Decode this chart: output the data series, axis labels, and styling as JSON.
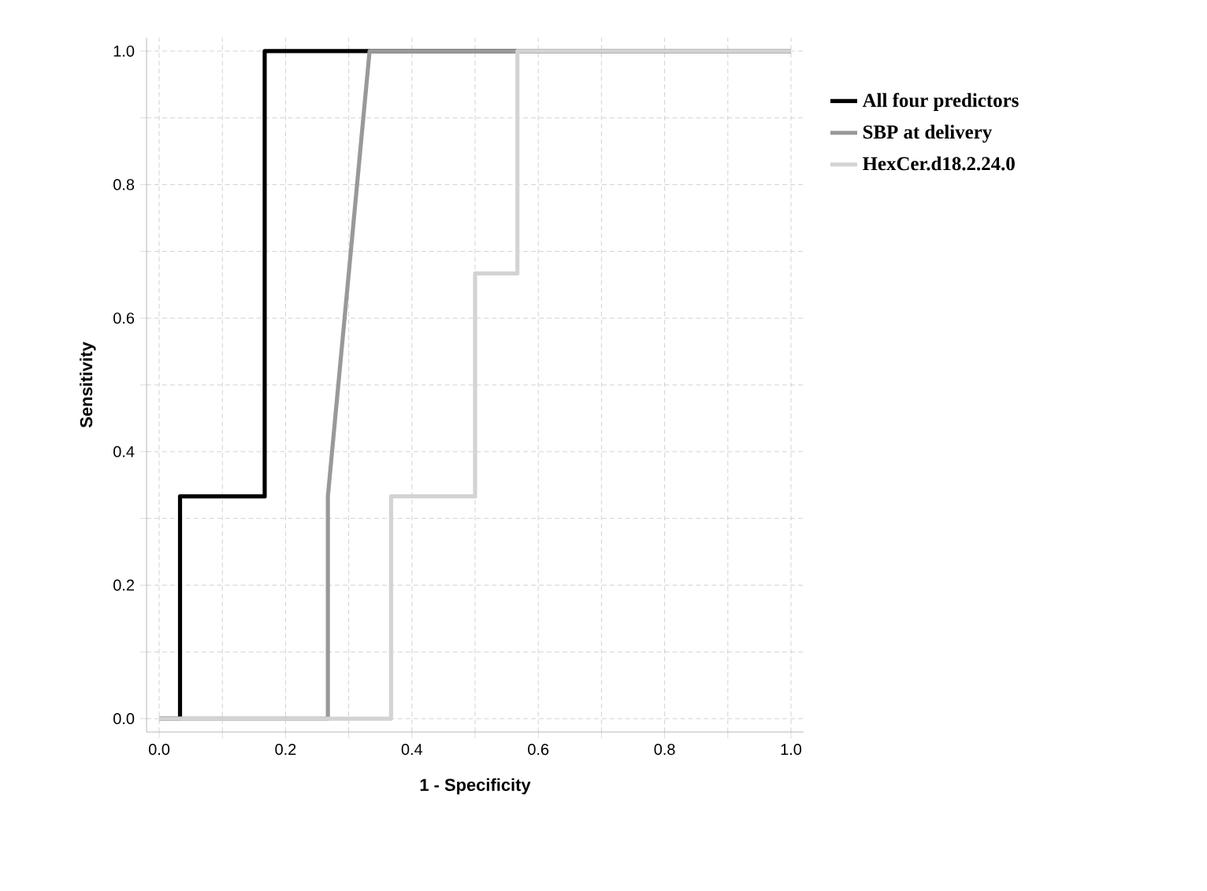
{
  "chart_data": {
    "type": "line",
    "xlabel": "1 - Specificity",
    "ylabel": "Sensitivity",
    "xlim": [
      -0.02,
      1.02
    ],
    "ylim": [
      -0.02,
      1.02
    ],
    "xticks": [
      {
        "value": 0,
        "label": "0.0"
      },
      {
        "value": 0.1,
        "label": null
      },
      {
        "value": 0.2,
        "label": "0.2"
      },
      {
        "value": 0.3,
        "label": null
      },
      {
        "value": 0.4,
        "label": "0.4"
      },
      {
        "value": 0.5,
        "label": null
      },
      {
        "value": 0.6,
        "label": "0.6"
      },
      {
        "value": 0.7,
        "label": null
      },
      {
        "value": 0.8,
        "label": "0.8"
      },
      {
        "value": 0.9,
        "label": null
      },
      {
        "value": 1,
        "label": "1.0"
      }
    ],
    "yticks": [
      {
        "value": 0,
        "label": "0.0"
      },
      {
        "value": 0.1,
        "label": null
      },
      {
        "value": 0.2,
        "label": "0.2"
      },
      {
        "value": 0.3,
        "label": null
      },
      {
        "value": 0.4,
        "label": "0.4"
      },
      {
        "value": 0.5,
        "label": null
      },
      {
        "value": 0.6,
        "label": "0.6"
      },
      {
        "value": 0.7,
        "label": null
      },
      {
        "value": 0.8,
        "label": "0.8"
      },
      {
        "value": 0.9,
        "label": null
      },
      {
        "value": 1,
        "label": "1.0"
      }
    ],
    "grid": true,
    "legend": "right",
    "line_style": "solid",
    "marker": "none",
    "series": [
      {
        "name": "All four predictors",
        "color": "#000000",
        "x": [
          0,
          0.033,
          0.033,
          0.167,
          0.167,
          1
        ],
        "values": [
          0,
          0,
          0.333,
          0.333,
          1,
          1
        ]
      },
      {
        "name": "SBP at delivery",
        "color": "#999999",
        "x": [
          0,
          0.267,
          0.267,
          0.333,
          1
        ],
        "values": [
          0,
          0,
          0.333,
          1,
          1
        ]
      },
      {
        "name": "HexCer.d18.2.24.0",
        "color": "#d3d3d3",
        "x": [
          0,
          0.367,
          0.367,
          0.5,
          0.5,
          0.567,
          0.567,
          1
        ],
        "values": [
          0,
          0,
          0.333,
          0.333,
          0.667,
          0.667,
          1,
          1
        ]
      }
    ]
  }
}
